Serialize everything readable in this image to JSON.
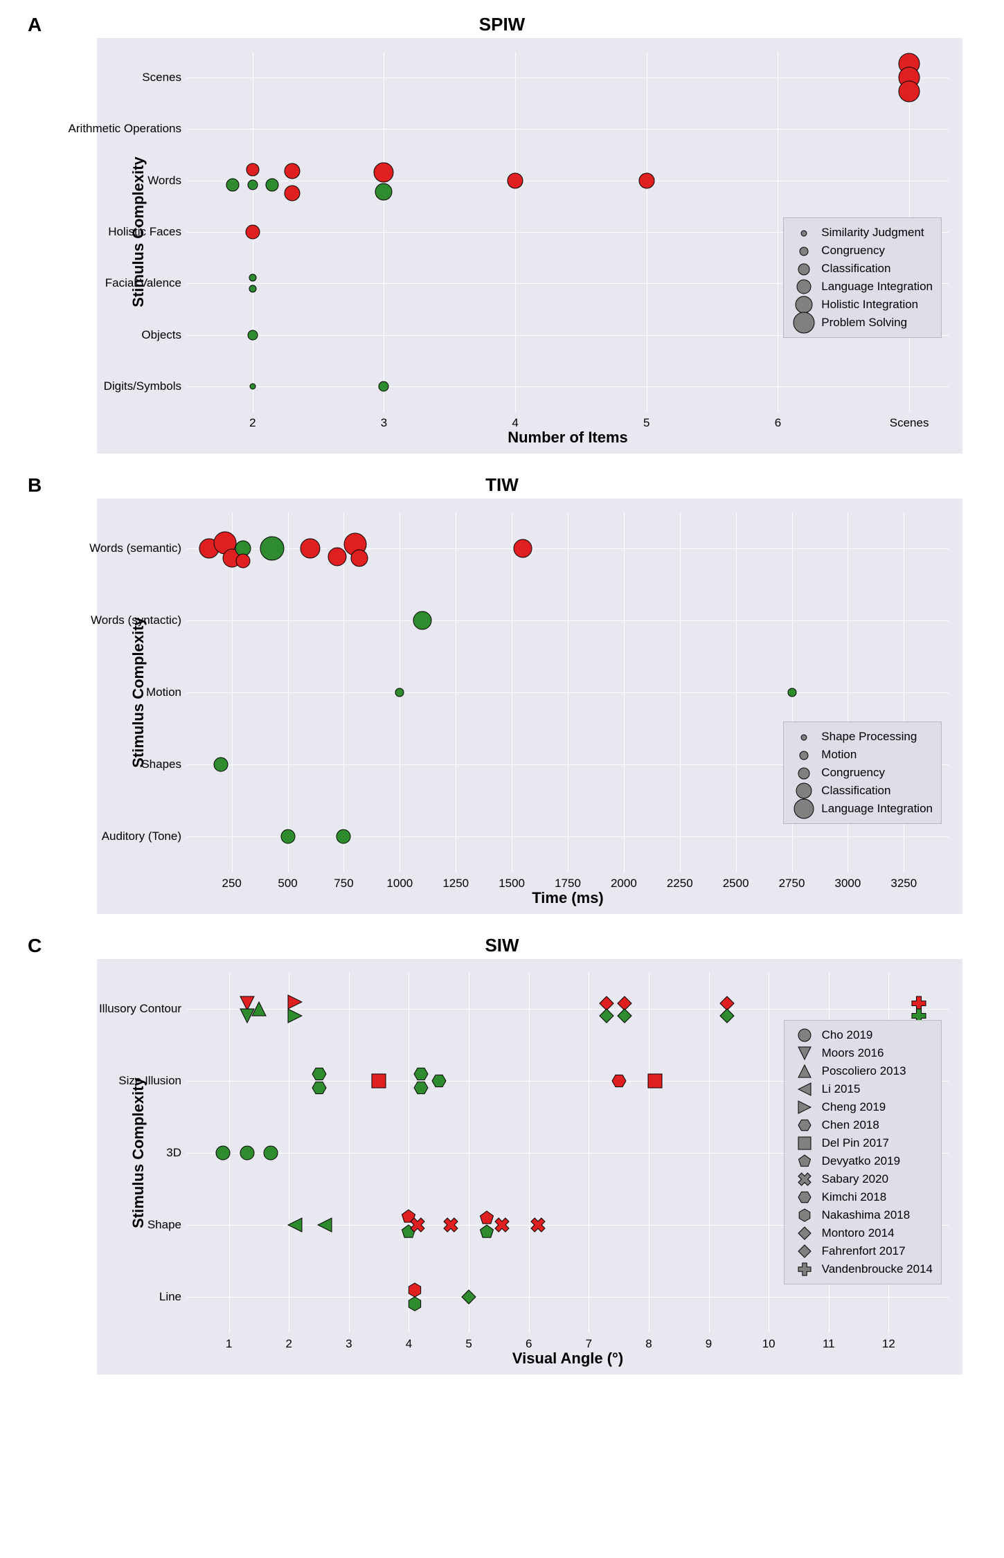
{
  "colors": {
    "bg": "#e8e8f0",
    "grid": "#ffffff",
    "green": "#2e8b2e",
    "red": "#e02020",
    "gray": "#808080",
    "legend_bg": "#dedee8"
  },
  "panels": [
    {
      "letter": "A",
      "title": "SPIW",
      "xlabel": "Number of Items",
      "ylabel": "Stimulus Complexity",
      "xticks": [
        {
          "v": 2,
          "l": "2"
        },
        {
          "v": 3,
          "l": "3"
        },
        {
          "v": 4,
          "l": "4"
        },
        {
          "v": 5,
          "l": "5"
        },
        {
          "v": 6,
          "l": "6"
        },
        {
          "v": 7,
          "l": "Scenes"
        }
      ],
      "xlim": [
        1.5,
        7.3
      ],
      "yticks": [
        "Digits/Symbols",
        "Objects",
        "Facial Valence",
        "Holistic Faces",
        "Words",
        "Arithmetic Operations",
        "Scenes"
      ],
      "points": [
        {
          "x": 2,
          "y": 0,
          "s": 10,
          "c": "green"
        },
        {
          "x": 3,
          "y": 0,
          "s": 16,
          "c": "green"
        },
        {
          "x": 2,
          "y": 1,
          "s": 16,
          "c": "green"
        },
        {
          "x": 2,
          "y": 2,
          "s": 12,
          "c": "green",
          "dy": -8
        },
        {
          "x": 2,
          "y": 2,
          "s": 12,
          "c": "green",
          "dy": 8
        },
        {
          "x": 2,
          "y": 3,
          "s": 22,
          "c": "red"
        },
        {
          "x": 1.85,
          "y": 4,
          "s": 20,
          "c": "green",
          "dy": 6
        },
        {
          "x": 2.0,
          "y": 4,
          "s": 16,
          "c": "green",
          "dy": 6
        },
        {
          "x": 2.15,
          "y": 4,
          "s": 20,
          "c": "green",
          "dy": 6
        },
        {
          "x": 2.0,
          "y": 4,
          "s": 20,
          "c": "red",
          "dy": -16
        },
        {
          "x": 2.3,
          "y": 4,
          "s": 24,
          "c": "red",
          "dy": -14
        },
        {
          "x": 2.3,
          "y": 4,
          "s": 24,
          "c": "red",
          "dy": 18
        },
        {
          "x": 3,
          "y": 4,
          "s": 30,
          "c": "red",
          "dy": -12
        },
        {
          "x": 3,
          "y": 4,
          "s": 26,
          "c": "green",
          "dy": 16
        },
        {
          "x": 4,
          "y": 4,
          "s": 24,
          "c": "red"
        },
        {
          "x": 5,
          "y": 4,
          "s": 24,
          "c": "red"
        },
        {
          "x": 7,
          "y": 6,
          "s": 32,
          "c": "red",
          "dy": -20
        },
        {
          "x": 7,
          "y": 6,
          "s": 32,
          "c": "red",
          "dy": 0
        },
        {
          "x": 7,
          "y": 6,
          "s": 32,
          "c": "red",
          "dy": 20
        }
      ],
      "legend": {
        "pos": "middle",
        "items": [
          {
            "s": 10,
            "l": "Similarity Judgment"
          },
          {
            "s": 14,
            "l": "Congruency"
          },
          {
            "s": 18,
            "l": "Classification"
          },
          {
            "s": 22,
            "l": "Language Integration"
          },
          {
            "s": 26,
            "l": "Holistic Integration"
          },
          {
            "s": 32,
            "l": "Problem Solving"
          }
        ]
      }
    },
    {
      "letter": "B",
      "title": "TIW",
      "xlabel": "Time (ms)",
      "ylabel": "Stimulus Complexity",
      "xticks": [
        {
          "v": 250,
          "l": "250"
        },
        {
          "v": 500,
          "l": "500"
        },
        {
          "v": 750,
          "l": "750"
        },
        {
          "v": 1000,
          "l": "1000"
        },
        {
          "v": 1250,
          "l": "1250"
        },
        {
          "v": 1500,
          "l": "1500"
        },
        {
          "v": 1750,
          "l": "1750"
        },
        {
          "v": 2000,
          "l": "2000"
        },
        {
          "v": 2250,
          "l": "2250"
        },
        {
          "v": 2500,
          "l": "2500"
        },
        {
          "v": 2750,
          "l": "2750"
        },
        {
          "v": 3000,
          "l": "3000"
        },
        {
          "v": 3250,
          "l": "3250"
        }
      ],
      "xlim": [
        50,
        3450
      ],
      "yticks": [
        "Auditory (Tone)",
        "Shapes",
        "Motion",
        "Words (syntactic)",
        "Words (semantic)"
      ],
      "points": [
        {
          "x": 500,
          "y": 0,
          "s": 22,
          "c": "green"
        },
        {
          "x": 750,
          "y": 0,
          "s": 22,
          "c": "green"
        },
        {
          "x": 200,
          "y": 1,
          "s": 22,
          "c": "green"
        },
        {
          "x": 3350,
          "y": 1,
          "s": 14,
          "c": "green"
        },
        {
          "x": 1000,
          "y": 2,
          "s": 14,
          "c": "green"
        },
        {
          "x": 2750,
          "y": 2,
          "s": 14,
          "c": "green"
        },
        {
          "x": 1100,
          "y": 3,
          "s": 28,
          "c": "green"
        },
        {
          "x": 150,
          "y": 4,
          "s": 30,
          "c": "red",
          "dy": 0
        },
        {
          "x": 220,
          "y": 4,
          "s": 34,
          "c": "red",
          "dy": -8
        },
        {
          "x": 250,
          "y": 4,
          "s": 28,
          "c": "red",
          "dy": 14
        },
        {
          "x": 300,
          "y": 4,
          "s": 24,
          "c": "green",
          "dy": 0
        },
        {
          "x": 300,
          "y": 4,
          "s": 22,
          "c": "red",
          "dy": 18
        },
        {
          "x": 430,
          "y": 4,
          "s": 36,
          "c": "green",
          "dy": 0
        },
        {
          "x": 600,
          "y": 4,
          "s": 30,
          "c": "red",
          "dy": 0
        },
        {
          "x": 720,
          "y": 4,
          "s": 28,
          "c": "red",
          "dy": 12
        },
        {
          "x": 800,
          "y": 4,
          "s": 34,
          "c": "red",
          "dy": -6
        },
        {
          "x": 820,
          "y": 4,
          "s": 26,
          "c": "red",
          "dy": 14
        },
        {
          "x": 1550,
          "y": 4,
          "s": 28,
          "c": "red"
        }
      ],
      "legend": {
        "pos": "bottom",
        "items": [
          {
            "s": 10,
            "l": "Shape Processing"
          },
          {
            "s": 14,
            "l": "Motion"
          },
          {
            "s": 18,
            "l": "Congruency"
          },
          {
            "s": 24,
            "l": "Classification"
          },
          {
            "s": 30,
            "l": "Language Integration"
          }
        ]
      }
    },
    {
      "letter": "C",
      "title": "SIW",
      "xlabel": "Visual Angle (°)",
      "ylabel": "Stimulus Complexity",
      "xticks": [
        {
          "v": 1,
          "l": "1"
        },
        {
          "v": 2,
          "l": "2"
        },
        {
          "v": 3,
          "l": "3"
        },
        {
          "v": 4,
          "l": "4"
        },
        {
          "v": 5,
          "l": "5"
        },
        {
          "v": 6,
          "l": "6"
        },
        {
          "v": 7,
          "l": "7"
        },
        {
          "v": 8,
          "l": "8"
        },
        {
          "v": 9,
          "l": "9"
        },
        {
          "v": 10,
          "l": "10"
        },
        {
          "v": 11,
          "l": "11"
        },
        {
          "v": 12,
          "l": "12"
        }
      ],
      "xlim": [
        0.3,
        13
      ],
      "yticks": [
        "Line",
        "Shape",
        "3D",
        "Size Illusion",
        "Illusory Contour"
      ],
      "points": [
        {
          "x": 4.1,
          "y": 0,
          "m": "hex",
          "c": "red",
          "dy": -10
        },
        {
          "x": 4.1,
          "y": 0,
          "m": "hex",
          "c": "green",
          "dy": 10
        },
        {
          "x": 5,
          "y": 0,
          "m": "diamondw",
          "c": "green"
        },
        {
          "x": 2.1,
          "y": 1,
          "m": "trileft",
          "c": "green"
        },
        {
          "x": 2.6,
          "y": 1,
          "m": "trileft",
          "c": "green"
        },
        {
          "x": 4,
          "y": 1,
          "m": "pent",
          "c": "red",
          "dy": -12
        },
        {
          "x": 4,
          "y": 1,
          "m": "pent",
          "c": "green",
          "dy": 10
        },
        {
          "x": 4.15,
          "y": 1,
          "m": "x",
          "c": "red"
        },
        {
          "x": 4.7,
          "y": 1,
          "m": "x",
          "c": "red"
        },
        {
          "x": 5.3,
          "y": 1,
          "m": "pent",
          "c": "red",
          "dy": -10
        },
        {
          "x": 5.3,
          "y": 1,
          "m": "pent",
          "c": "green",
          "dy": 10
        },
        {
          "x": 5.55,
          "y": 1,
          "m": "x",
          "c": "red"
        },
        {
          "x": 6.15,
          "y": 1,
          "m": "x",
          "c": "red"
        },
        {
          "x": 0.9,
          "y": 2,
          "m": "circle",
          "c": "green"
        },
        {
          "x": 1.3,
          "y": 2,
          "m": "circle",
          "c": "green"
        },
        {
          "x": 1.7,
          "y": 2,
          "m": "circle",
          "c": "green"
        },
        {
          "x": 2.5,
          "y": 3,
          "m": "hex2",
          "c": "green",
          "dy": -10
        },
        {
          "x": 2.5,
          "y": 3,
          "m": "hex2",
          "c": "green",
          "dy": 10
        },
        {
          "x": 3.5,
          "y": 3,
          "m": "square",
          "c": "red"
        },
        {
          "x": 4.2,
          "y": 3,
          "m": "hex2",
          "c": "green",
          "dy": -10
        },
        {
          "x": 4.2,
          "y": 3,
          "m": "hex2",
          "c": "green",
          "dy": 10
        },
        {
          "x": 4.5,
          "y": 3,
          "m": "hex2",
          "c": "green"
        },
        {
          "x": 7.5,
          "y": 3,
          "m": "hex2",
          "c": "red"
        },
        {
          "x": 8.1,
          "y": 3,
          "m": "square",
          "c": "red"
        },
        {
          "x": 1.3,
          "y": 4,
          "m": "tridown",
          "c": "red",
          "dy": -8
        },
        {
          "x": 1.3,
          "y": 4,
          "m": "tridown",
          "c": "green",
          "dy": 10
        },
        {
          "x": 1.5,
          "y": 4,
          "m": "triup",
          "c": "green"
        },
        {
          "x": 2.1,
          "y": 4,
          "m": "triright",
          "c": "red",
          "dy": -10
        },
        {
          "x": 2.1,
          "y": 4,
          "m": "triright",
          "c": "green",
          "dy": 10
        },
        {
          "x": 7.3,
          "y": 4,
          "m": "diamond",
          "c": "red",
          "dy": -8
        },
        {
          "x": 7.3,
          "y": 4,
          "m": "diamond",
          "c": "green",
          "dy": 10
        },
        {
          "x": 7.6,
          "y": 4,
          "m": "diamond",
          "c": "red",
          "dy": -8
        },
        {
          "x": 7.6,
          "y": 4,
          "m": "diamond",
          "c": "green",
          "dy": 10
        },
        {
          "x": 9.3,
          "y": 4,
          "m": "diamond",
          "c": "red",
          "dy": -8
        },
        {
          "x": 9.3,
          "y": 4,
          "m": "diamond",
          "c": "green",
          "dy": 10
        },
        {
          "x": 12.5,
          "y": 4,
          "m": "plus",
          "c": "red",
          "dy": -8
        },
        {
          "x": 12.5,
          "y": 4,
          "m": "plus",
          "c": "green",
          "dy": 10
        }
      ],
      "legend": {
        "pos": "bottom",
        "marker_legend": true,
        "items": [
          {
            "m": "circle",
            "l": "Cho 2019"
          },
          {
            "m": "tridown",
            "l": "Moors 2016"
          },
          {
            "m": "triup",
            "l": "Poscoliero 2013"
          },
          {
            "m": "trileft",
            "l": "Li 2015"
          },
          {
            "m": "triright",
            "l": "Cheng 2019"
          },
          {
            "m": "hex2",
            "l": "Chen 2018"
          },
          {
            "m": "square",
            "l": "Del Pin 2017"
          },
          {
            "m": "pent",
            "l": "Devyatko 2019"
          },
          {
            "m": "x",
            "l": "Sabary 2020"
          },
          {
            "m": "hex2",
            "l": "Kimchi 2018"
          },
          {
            "m": "hex",
            "l": "Nakashima 2018"
          },
          {
            "m": "diamondw",
            "l": "Montoro 2014"
          },
          {
            "m": "diamond",
            "l": "Fahrenfort 2017"
          },
          {
            "m": "plus",
            "l": "Vandenbroucke 2014"
          }
        ]
      }
    }
  ]
}
